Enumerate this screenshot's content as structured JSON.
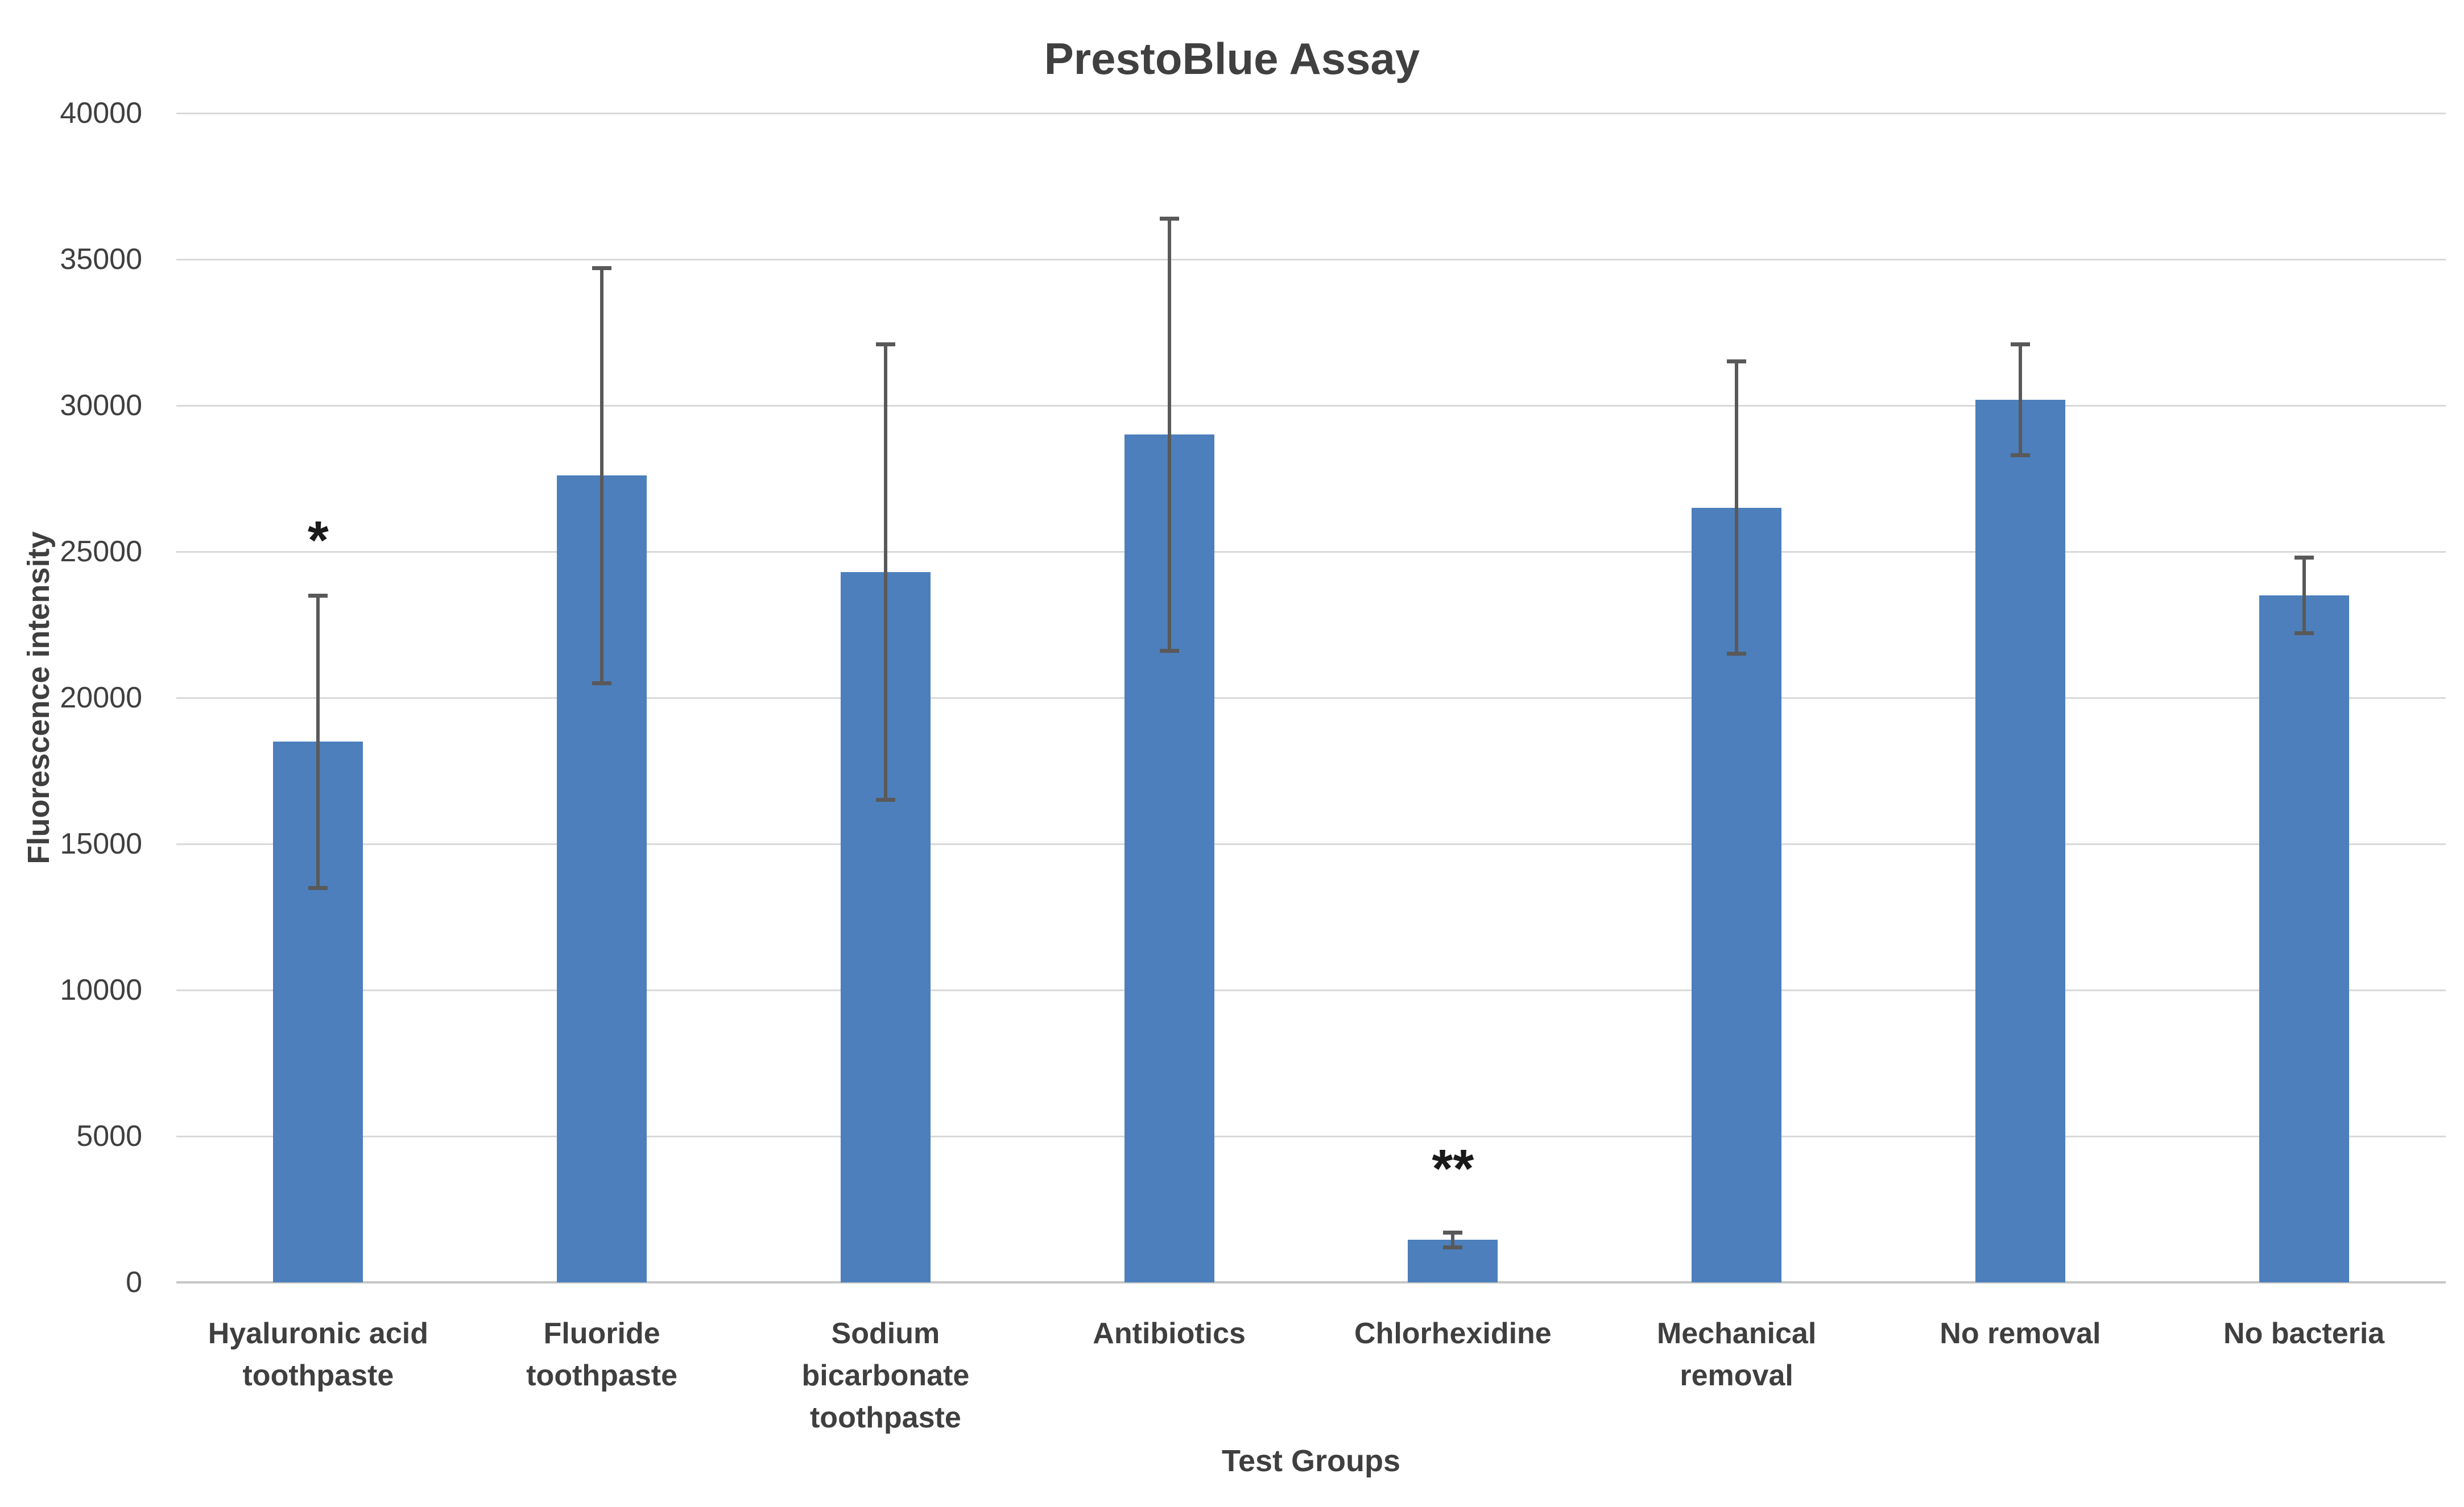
{
  "chart_data": {
    "type": "bar",
    "title": "PrestoBlue Assay",
    "xlabel": "Test Groups",
    "ylabel": "Fluorescence intensity",
    "ylim": [
      0,
      40000
    ],
    "yticks": [
      0,
      5000,
      10000,
      15000,
      20000,
      25000,
      30000,
      35000,
      40000
    ],
    "grid": true,
    "legend_position": "none",
    "categories": [
      "Hyaluronic acid toothpaste",
      "Fluoride toothpaste",
      "Sodium bicarbonate toothpaste",
      "Antibiotics",
      "Chlorhexidine",
      "Mechanical removal",
      "No removal",
      "No bacteria"
    ],
    "category_label_lines": [
      [
        "Hyaluronic acid",
        "toothpaste"
      ],
      [
        "Fluoride",
        "toothpaste"
      ],
      [
        "Sodium",
        "bicarbonate",
        "toothpaste"
      ],
      [
        "Antibiotics"
      ],
      [
        "Chlorhexidine"
      ],
      [
        "Mechanical",
        "removal"
      ],
      [
        "No removal"
      ],
      [
        "No bacteria"
      ]
    ],
    "values": [
      18500,
      27600,
      24300,
      29000,
      1450,
      26500,
      30200,
      23500
    ],
    "error_bars": [
      5000,
      7100,
      7800,
      7400,
      250,
      5000,
      1900,
      1300
    ],
    "significance": [
      {
        "index": 0,
        "text": "*",
        "y_top_value": 26300
      },
      {
        "index": 4,
        "text": "**",
        "y_top_value": 4800
      }
    ],
    "colors": {
      "bar": "#4C7FBC",
      "error": "#595959",
      "grid": "#D9D9D9",
      "axis_line": "#C6C6C6",
      "text": "#3F3F3F",
      "title": "#404040"
    }
  }
}
